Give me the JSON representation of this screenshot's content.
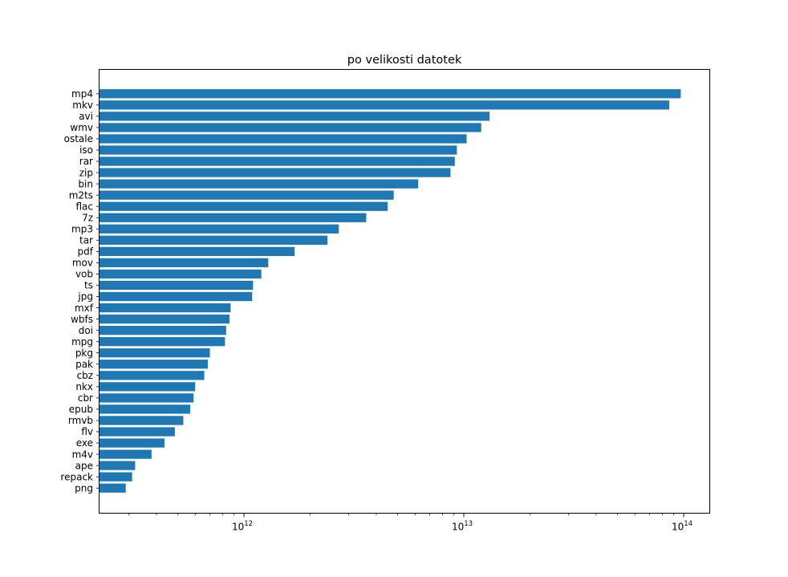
{
  "chart_data": {
    "type": "bar",
    "orientation": "horizontal",
    "title": "po velikosti datotek",
    "xlabel": "",
    "ylabel": "",
    "xscale": "log",
    "xlim": [
      220000000000.0,
      131400000000000.0
    ],
    "grid": false,
    "legend": null,
    "bar_color": "#1f77b4",
    "axis_color": "#000000",
    "background_color": "#ffffff",
    "categories": [
      "mp4",
      "mkv",
      "avi",
      "wmv",
      "ostale",
      "iso",
      "rar",
      "zip",
      "bin",
      "m2ts",
      "flac",
      "7z",
      "mp3",
      "tar",
      "pdf",
      "mov",
      "vob",
      "ts",
      "jpg",
      "mxf",
      "wbfs",
      "doi",
      "mpg",
      "pkg",
      "pak",
      "cbz",
      "nkx",
      "cbr",
      "epub",
      "rmvb",
      "flv",
      "exe",
      "m4v",
      "ape",
      "repack",
      "png"
    ],
    "values": [
      97000000000000.0,
      86000000000000.0,
      13100000000000.0,
      12000000000000.0,
      10300000000000.0,
      9300000000000.0,
      9100000000000.0,
      8700000000000.0,
      6200000000000.0,
      4800000000000.0,
      4500000000000.0,
      3600000000000.0,
      2700000000000.0,
      2400000000000.0,
      1700000000000.0,
      1290000000000.0,
      1200000000000.0,
      1100000000000.0,
      1090000000000.0,
      870000000000.0,
      860000000000.0,
      830000000000.0,
      820000000000.0,
      700000000000.0,
      685000000000.0,
      660000000000.0,
      600000000000.0,
      590000000000.0,
      570000000000.0,
      530000000000.0,
      485000000000.0,
      435000000000.0,
      380000000000.0,
      320000000000.0,
      310000000000.0,
      290000000000.0
    ],
    "x_major_ticks": [
      1000000000000.0,
      10000000000000.0,
      100000000000000.0
    ],
    "x_tick_labels": [
      {
        "base": "10",
        "exp": "12"
      },
      {
        "base": "10",
        "exp": "13"
      },
      {
        "base": "10",
        "exp": "14"
      }
    ]
  }
}
